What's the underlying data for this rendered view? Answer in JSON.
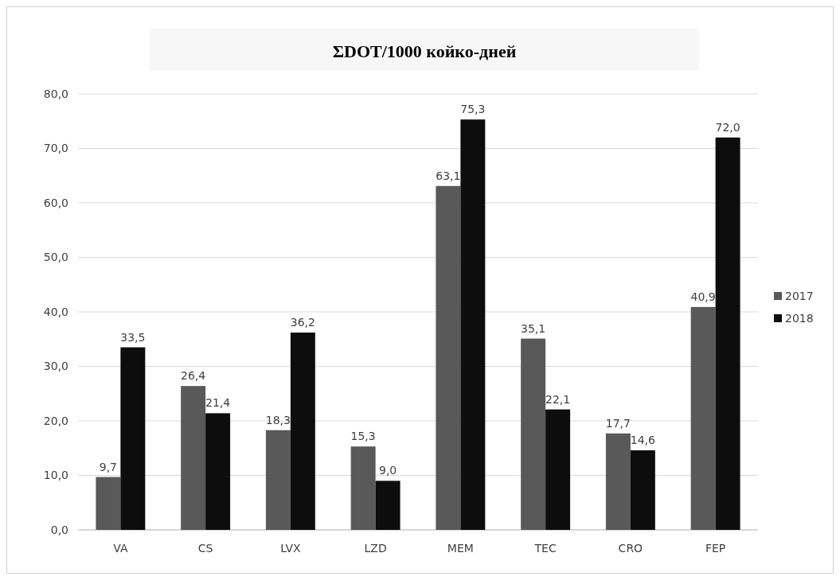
{
  "chart_data": {
    "type": "bar",
    "title": "ΣDOT/1000 койко-дней",
    "categories": [
      "VA",
      "CS",
      "LVX",
      "LZD",
      "MEM",
      "TEC",
      "CRO",
      "FEP"
    ],
    "series": [
      {
        "name": "2017",
        "color": "#595959",
        "values": [
          9.7,
          26.4,
          18.3,
          15.3,
          63.1,
          35.1,
          17.7,
          40.9
        ],
        "value_labels": [
          "9,7",
          "26,4",
          "18,3",
          "15,3",
          "63,1",
          "35,1",
          "17,7",
          "40,9"
        ]
      },
      {
        "name": "2018",
        "color": "#0d0d0d",
        "values": [
          33.5,
          21.4,
          36.2,
          9.0,
          75.3,
          22.1,
          14.6,
          72.0
        ],
        "value_labels": [
          "33,5",
          "21,4",
          "36,2",
          "9,0",
          "75,3",
          "22,1",
          "14,6",
          "72,0"
        ]
      }
    ],
    "ylim": [
      0,
      80
    ],
    "yticks": [
      {
        "value": 0,
        "label": "0,0"
      },
      {
        "value": 10,
        "label": "10,0"
      },
      {
        "value": 20,
        "label": "20,0"
      },
      {
        "value": 30,
        "label": "30,0"
      },
      {
        "value": 40,
        "label": "40,0"
      },
      {
        "value": 50,
        "label": "50,0"
      },
      {
        "value": 60,
        "label": "60,0"
      },
      {
        "value": 70,
        "label": "70,0"
      },
      {
        "value": 80,
        "label": "80,0"
      }
    ],
    "grid": "y",
    "legend": "right"
  }
}
